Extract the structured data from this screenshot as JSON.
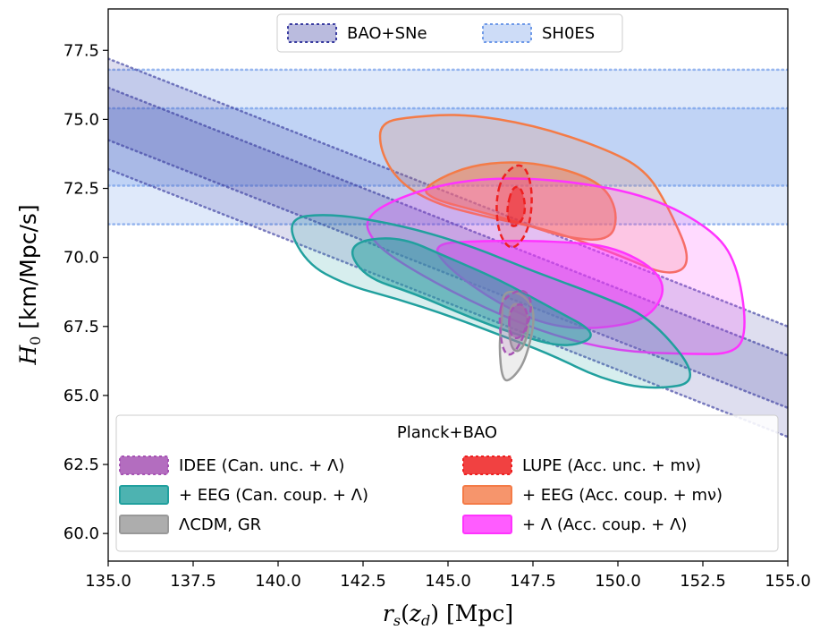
{
  "chart_data": {
    "type": "contour",
    "title": "",
    "xlabel": "r_s(z_d)  [Mpc]",
    "ylabel": "H_0 [km/Mpc/s]",
    "xlim": [
      135.0,
      155.0
    ],
    "ylim": [
      59.0,
      79.0
    ],
    "xticks": [
      "135.0",
      "137.5",
      "140.0",
      "142.5",
      "145.0",
      "147.5",
      "150.0",
      "152.5",
      "155.0"
    ],
    "yticks": [
      "60.0",
      "62.5",
      "65.0",
      "67.5",
      "70.0",
      "72.5",
      "75.0",
      "77.5"
    ],
    "grid": false,
    "bands": [
      {
        "name": "SH0ES",
        "color": "#6f9ae8",
        "center": 74.0,
        "sigma1": [
          72.6,
          75.4
        ],
        "sigma2": [
          71.2,
          76.8
        ]
      },
      {
        "name": "BAO+SNe",
        "color": "#3a3da0",
        "line_c_at_135": 75.2,
        "line_c_at_155": 65.5,
        "sigma1_halfwidth": 0.95,
        "sigma2_halfwidth": 2.0
      }
    ],
    "contours": [
      {
        "name": "+ EEG (Acc. coup. + m_ν)",
        "color": "#f47b47",
        "outer": [
          [
            143.0,
            74.9
          ],
          [
            144.0,
            75.1
          ],
          [
            145.5,
            75.2
          ],
          [
            147.5,
            74.8
          ],
          [
            149.5,
            74.0
          ],
          [
            150.8,
            73.2
          ],
          [
            151.5,
            71.8
          ],
          [
            152.2,
            69.8
          ],
          [
            151.5,
            69.3
          ],
          [
            150.0,
            70.1
          ],
          [
            148.0,
            71.0
          ],
          [
            146.0,
            71.5
          ],
          [
            144.5,
            72.0
          ],
          [
            143.5,
            72.8
          ],
          [
            143.0,
            73.9
          ]
        ],
        "inner": [
          [
            144.2,
            72.5
          ],
          [
            145.5,
            73.3
          ],
          [
            147.0,
            73.5
          ],
          [
            148.5,
            73.2
          ],
          [
            149.6,
            72.6
          ],
          [
            150.0,
            71.6
          ],
          [
            149.8,
            70.6
          ],
          [
            148.5,
            70.7
          ],
          [
            147.0,
            71.3
          ],
          [
            145.5,
            71.8
          ],
          [
            144.6,
            72.1
          ]
        ]
      },
      {
        "name": "+ Λ (Acc. coup. + Λ)",
        "color": "#ff33ff",
        "outer": [
          [
            142.5,
            71.5
          ],
          [
            144.0,
            72.4
          ],
          [
            146.0,
            72.9
          ],
          [
            148.5,
            72.8
          ],
          [
            151.0,
            72.2
          ],
          [
            152.8,
            71.0
          ],
          [
            153.5,
            69.8
          ],
          [
            153.8,
            67.5
          ],
          [
            153.5,
            66.5
          ],
          [
            152.0,
            66.5
          ],
          [
            150.0,
            66.6
          ],
          [
            148.0,
            67.2
          ],
          [
            146.0,
            68.2
          ],
          [
            144.0,
            69.5
          ],
          [
            142.8,
            70.5
          ]
        ],
        "inner": [
          [
            144.5,
            70.5
          ],
          [
            146.0,
            70.6
          ],
          [
            148.0,
            70.6
          ],
          [
            150.0,
            70.4
          ],
          [
            151.5,
            69.2
          ],
          [
            151.0,
            67.8
          ],
          [
            149.5,
            67.4
          ],
          [
            148.0,
            67.5
          ],
          [
            146.5,
            68.3
          ],
          [
            145.0,
            69.6
          ]
        ]
      },
      {
        "name": "+ EEG (Can. coup. + Λ)",
        "color": "#21a09e",
        "outer": [
          [
            140.2,
            71.4
          ],
          [
            141.5,
            71.6
          ],
          [
            143.5,
            71.2
          ],
          [
            145.5,
            70.5
          ],
          [
            147.5,
            69.5
          ],
          [
            149.5,
            68.6
          ],
          [
            151.0,
            67.8
          ],
          [
            152.5,
            65.5
          ],
          [
            151.0,
            65.2
          ],
          [
            149.5,
            65.6
          ],
          [
            148.0,
            66.5
          ],
          [
            146.5,
            67.2
          ],
          [
            145.0,
            67.9
          ],
          [
            143.5,
            68.5
          ],
          [
            142.0,
            69.0
          ],
          [
            140.8,
            69.8
          ]
        ],
        "inner": [
          [
            142.0,
            70.5
          ],
          [
            143.5,
            70.8
          ],
          [
            145.0,
            70.0
          ],
          [
            146.5,
            69.2
          ],
          [
            148.0,
            68.2
          ],
          [
            149.5,
            67.2
          ],
          [
            148.5,
            66.7
          ],
          [
            147.0,
            67.2
          ],
          [
            145.5,
            67.9
          ],
          [
            144.0,
            68.7
          ],
          [
            142.5,
            69.3
          ]
        ]
      },
      {
        "name": "ΛCDM, GR",
        "color": "#999999",
        "outer": [
          [
            146.6,
            68.8
          ],
          [
            147.2,
            68.7
          ],
          [
            147.6,
            68.0
          ],
          [
            147.3,
            66.3
          ],
          [
            146.9,
            65.6
          ],
          [
            146.6,
            65.5
          ],
          [
            146.5,
            66.8
          ],
          [
            146.6,
            67.8
          ]
        ],
        "inner": [
          [
            146.8,
            68.4
          ],
          [
            147.3,
            68.2
          ],
          [
            147.4,
            67.3
          ],
          [
            147.1,
            66.5
          ],
          [
            146.8,
            66.8
          ]
        ]
      },
      {
        "name": "IDEE (Can. unc. + Λ)",
        "color": "#a654b4",
        "outer": [
          [
            146.6,
            68.5
          ],
          [
            147.2,
            68.9
          ],
          [
            147.5,
            68.4
          ],
          [
            147.3,
            67.3
          ],
          [
            146.9,
            66.4
          ],
          [
            146.6,
            66.6
          ],
          [
            146.5,
            67.8
          ]
        ],
        "inner": [
          [
            146.8,
            68.1
          ],
          [
            147.2,
            68.4
          ],
          [
            147.4,
            67.7
          ],
          [
            147.1,
            67.0
          ],
          [
            146.8,
            67.2
          ]
        ]
      },
      {
        "name": "LUPE (Acc. unc. + m_ν)",
        "color": "#ee2020",
        "outer": [
          [
            146.6,
            73.0
          ],
          [
            147.2,
            73.5
          ],
          [
            147.5,
            72.5
          ],
          [
            147.4,
            71.0
          ],
          [
            146.9,
            70.2
          ],
          [
            146.5,
            70.8
          ],
          [
            146.4,
            72.0
          ]
        ],
        "inner": [
          [
            146.9,
            72.6
          ],
          [
            147.2,
            72.5
          ],
          [
            147.3,
            71.5
          ],
          [
            146.9,
            71.0
          ],
          [
            146.7,
            71.6
          ]
        ]
      }
    ],
    "legend_top": {
      "placement": "upper-center",
      "entries": [
        {
          "label": "BAO+SNe",
          "color": "#3a3da0"
        },
        {
          "label": "SH0ES",
          "color": "#6f9ae8"
        }
      ]
    },
    "legend_bottom": {
      "placement": "lower-center",
      "title": "Planck+BAO",
      "entries": [
        {
          "label": "IDEE (Can. unc. + Λ)",
          "color": "#a654b4",
          "style": "dashed"
        },
        {
          "label": "LUPE (Acc. unc. + mν)",
          "color": "#ee2020",
          "style": "dashed"
        },
        {
          "label": "+ EEG (Can. coup. + Λ)",
          "color": "#21a09e",
          "style": "solid"
        },
        {
          "label": "+ EEG (Acc. coup. + mν)",
          "color": "#f47b47",
          "style": "solid"
        },
        {
          "label": "ΛCDM, GR",
          "color": "#999999",
          "style": "solid"
        },
        {
          "label": "+ Λ (Acc. coup. + Λ)",
          "color": "#ff33ff",
          "style": "solid"
        }
      ]
    }
  }
}
